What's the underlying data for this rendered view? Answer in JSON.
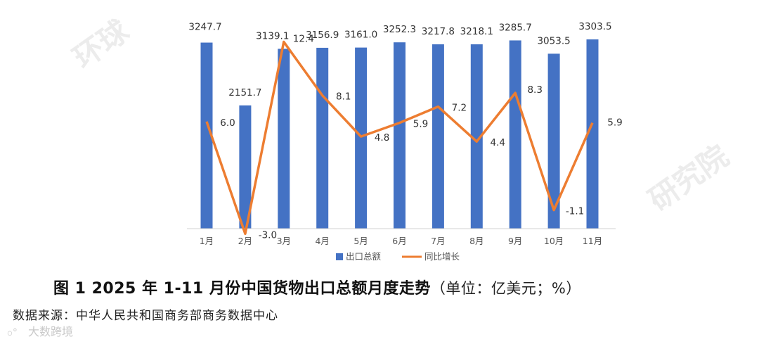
{
  "chart_data": {
    "type": "bar",
    "categories": [
      "1月",
      "2月",
      "3月",
      "4月",
      "5月",
      "6月",
      "7月",
      "8月",
      "9月",
      "10月",
      "11月"
    ],
    "series": [
      {
        "name": "出口总额",
        "type": "bar",
        "axis": "left",
        "color": "#4472C4",
        "values": [
          3247.7,
          2151.7,
          3139.1,
          3156.9,
          3161.0,
          3252.3,
          3217.8,
          3218.1,
          3285.7,
          3053.5,
          3303.5
        ],
        "labels": [
          "3247.7",
          "2151.7",
          "3139.1",
          "3156.9",
          "3161.0",
          "3252.3",
          "3217.8",
          "3218.1",
          "3285.7",
          "3053.5",
          "3303.5"
        ]
      },
      {
        "name": "同比增长",
        "type": "line",
        "axis": "right",
        "color": "#ED7D31",
        "values": [
          6.0,
          -3.0,
          12.4,
          8.1,
          4.8,
          5.9,
          7.2,
          4.4,
          8.3,
          -1.1,
          5.9
        ],
        "labels": [
          "6.0",
          "-3.0",
          "12.4",
          "8.1",
          "4.8",
          "5.9",
          "7.2",
          "4.4",
          "8.3",
          "-1.1",
          "5.9"
        ]
      }
    ],
    "ylim_left": [
      0,
      3500
    ],
    "ylim_right": [
      -4,
      13.5
    ],
    "grid": false,
    "legend": "bottom"
  },
  "caption": {
    "title": "图 1 2025 年 1-11 月份中国货物出口总额月度走势",
    "unit": "（单位：亿美元；%）"
  },
  "source": "数据来源：中华人民共和国商务部商务数据中心",
  "brand": {
    "logo": "ဝ°",
    "text": "大数跨境"
  },
  "watermarks": [
    "环球",
    "研究院"
  ]
}
